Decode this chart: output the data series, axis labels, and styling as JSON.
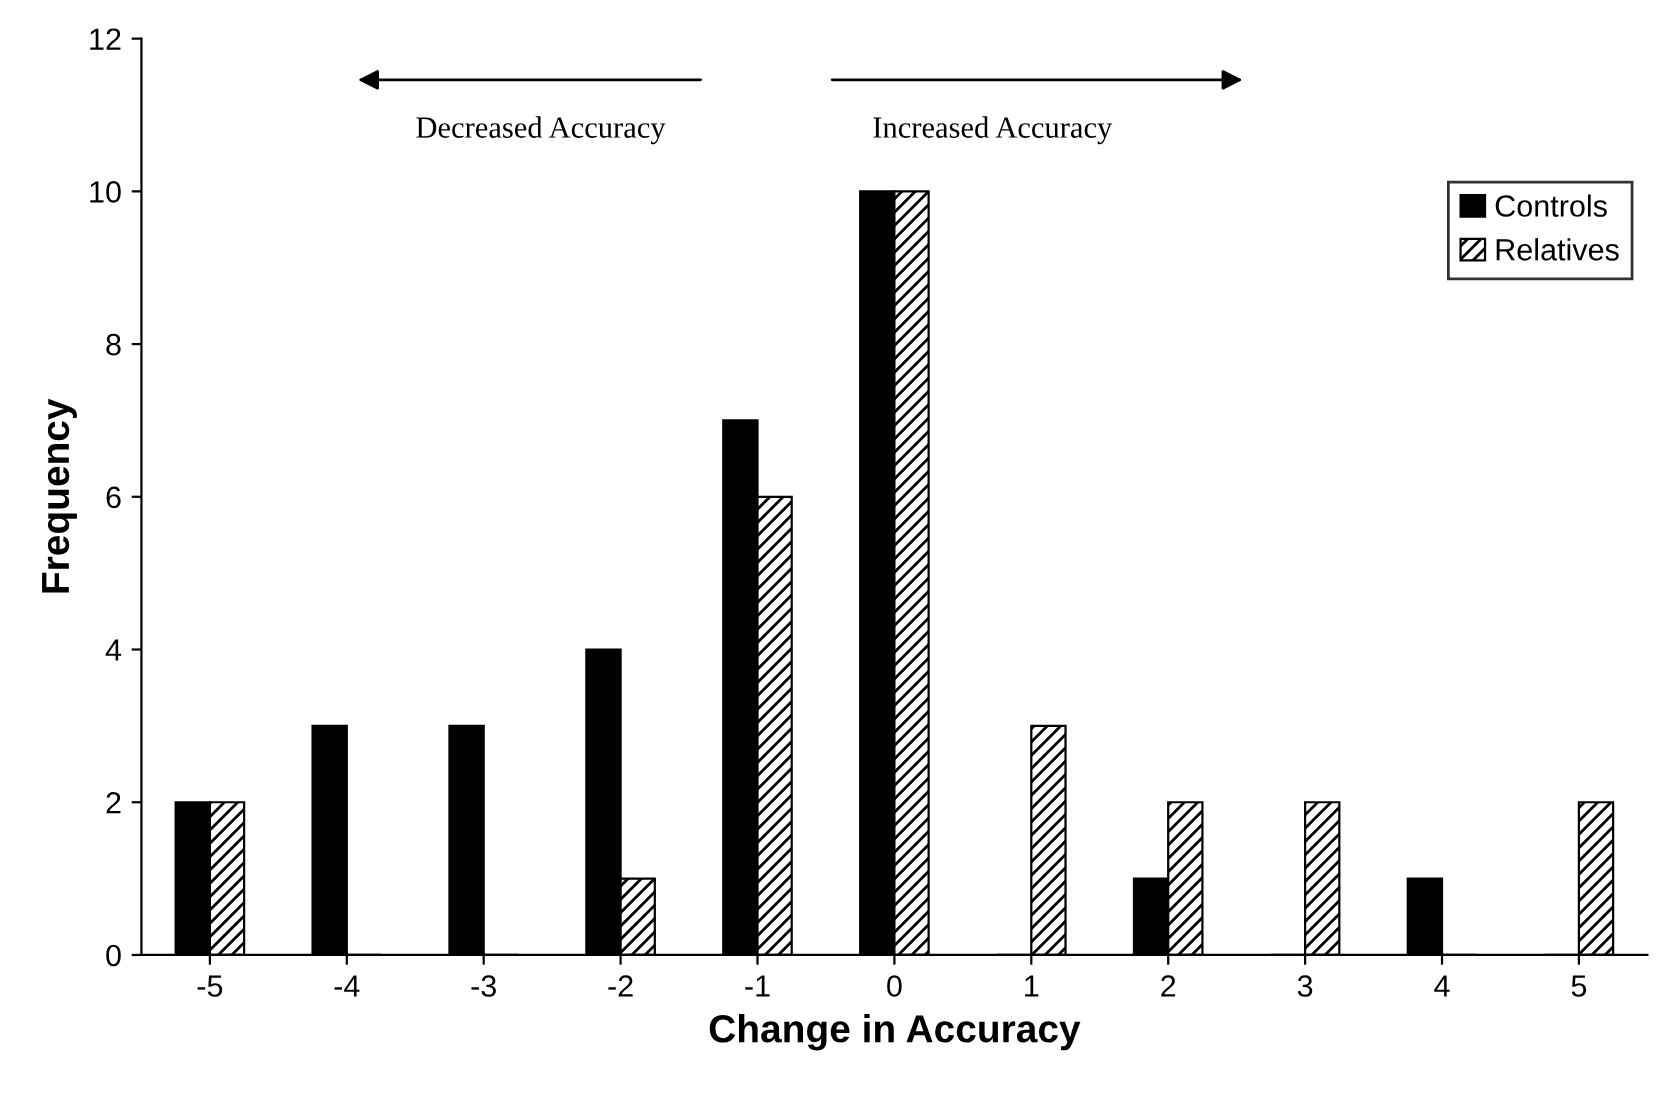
{
  "chart_data": {
    "type": "bar",
    "xlabel": "Change in Accuracy",
    "ylabel": "Frequency",
    "categories": [
      "-5",
      "-4",
      "-3",
      "-2",
      "-1",
      "0",
      "1",
      "2",
      "3",
      "4",
      "5"
    ],
    "series": [
      {
        "name": "Controls",
        "color": "#000000",
        "values": [
          2,
          3,
          3,
          4,
          7,
          10,
          0,
          1,
          0,
          1,
          0
        ]
      },
      {
        "name": "Relatives",
        "color": "#000000",
        "values": [
          2,
          0,
          0,
          1,
          6,
          10,
          3,
          2,
          2,
          0,
          2
        ]
      }
    ],
    "ylim": [
      0,
      12
    ],
    "yticks": [
      0,
      2,
      4,
      6,
      8,
      10,
      12
    ],
    "grid": false,
    "legend": "top right",
    "annotations": [
      "Decreased Accuracy",
      "Increased Accuracy"
    ]
  }
}
